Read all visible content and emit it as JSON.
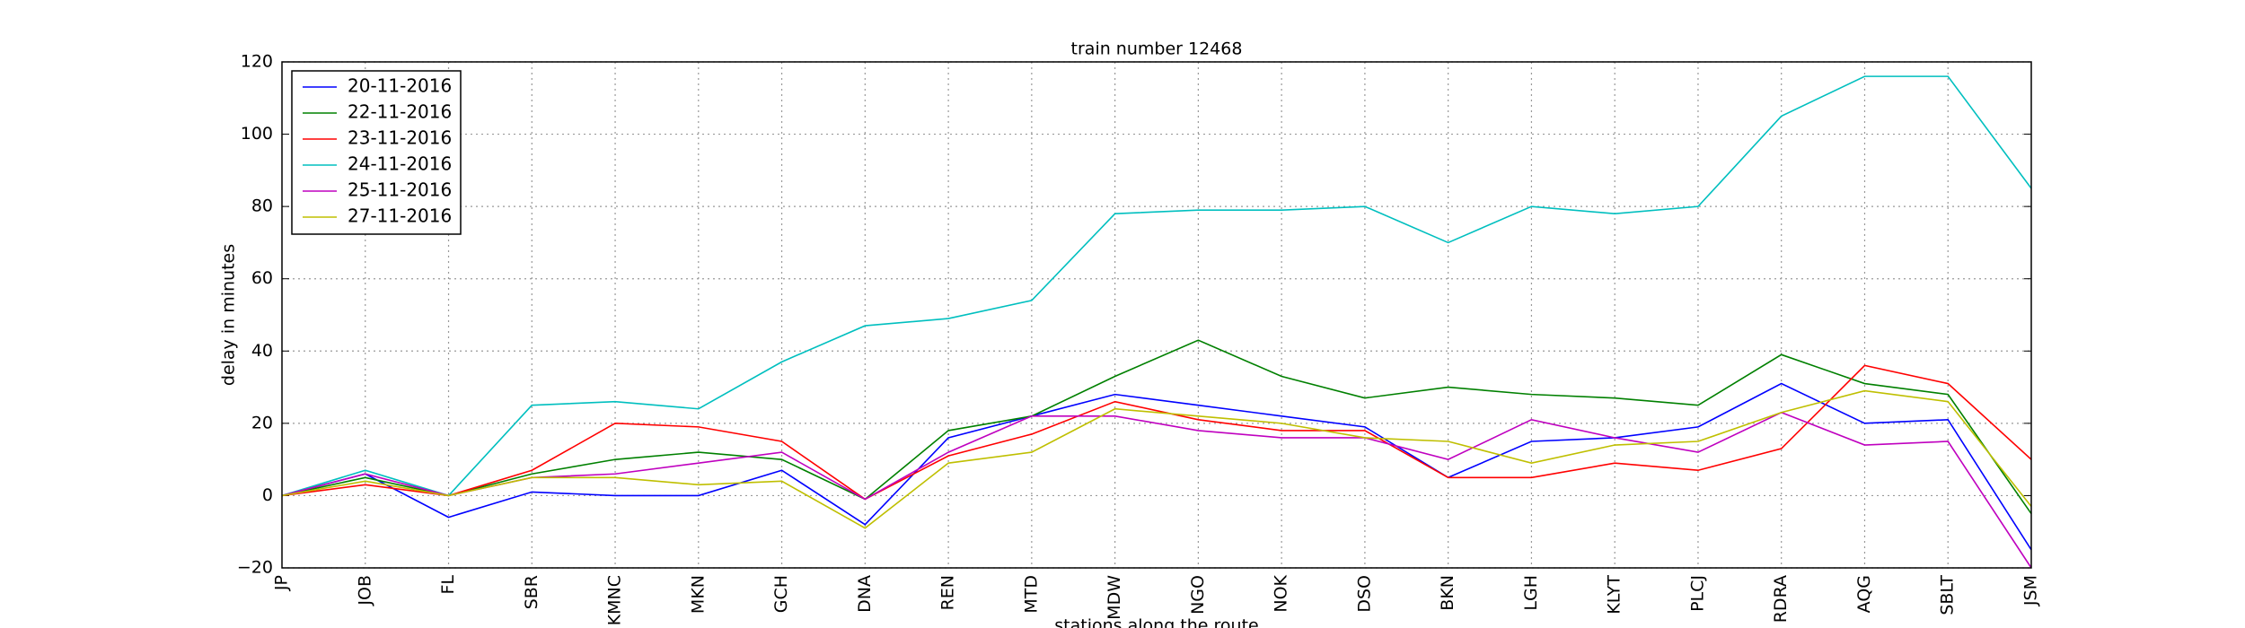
{
  "chart_data": {
    "type": "line",
    "title": "train number 12468",
    "xlabel": "stations along the route",
    "ylabel": "delay in minutes",
    "categories": [
      "JP",
      "JOB",
      "FL",
      "SBR",
      "KMNC",
      "MKN",
      "GCH",
      "DNA",
      "REN",
      "MTD",
      "MDW",
      "NGO",
      "NOK",
      "DSO",
      "BKN",
      "LGH",
      "KLYT",
      "PLCJ",
      "RDRA",
      "AQG",
      "SBLT",
      "JSM"
    ],
    "series": [
      {
        "name": "20-11-2016",
        "color": "#0000ff",
        "values": [
          0,
          6,
          -6,
          1,
          0,
          0,
          7,
          -8,
          16,
          22,
          28,
          25,
          22,
          19,
          5,
          15,
          16,
          19,
          31,
          20,
          21,
          -15
        ]
      },
      {
        "name": "22-11-2016",
        "color": "#008000",
        "values": [
          0,
          5,
          0,
          6,
          10,
          12,
          10,
          -1,
          18,
          22,
          33,
          43,
          33,
          27,
          30,
          28,
          27,
          25,
          39,
          31,
          28,
          -5
        ]
      },
      {
        "name": "23-11-2016",
        "color": "#ff0000",
        "values": [
          0,
          3,
          0,
          7,
          20,
          19,
          15,
          -1,
          11,
          17,
          26,
          21,
          18,
          18,
          5,
          5,
          9,
          7,
          13,
          36,
          31,
          10
        ]
      },
      {
        "name": "24-11-2016",
        "color": "#00bfbf",
        "values": [
          0,
          7,
          0,
          25,
          26,
          24,
          37,
          47,
          49,
          54,
          78,
          79,
          79,
          80,
          70,
          80,
          78,
          80,
          105,
          116,
          116,
          85
        ]
      },
      {
        "name": "25-11-2016",
        "color": "#bf00bf",
        "values": [
          0,
          6,
          0,
          5,
          6,
          9,
          12,
          -1,
          12,
          22,
          22,
          18,
          16,
          16,
          10,
          21,
          16,
          12,
          23,
          14,
          15,
          -20
        ]
      },
      {
        "name": "27-11-2016",
        "color": "#bfbf00",
        "values": [
          0,
          4,
          0,
          5,
          5,
          3,
          4,
          -9,
          9,
          12,
          24,
          22,
          20,
          16,
          15,
          9,
          14,
          15,
          23,
          29,
          26,
          -3
        ]
      }
    ],
    "ylim": [
      -20,
      120
    ],
    "yticks": [
      {
        "value": -20,
        "label": "−20"
      },
      0,
      20,
      40,
      60,
      80,
      100,
      120
    ],
    "grid": true,
    "legend": "upper left"
  }
}
